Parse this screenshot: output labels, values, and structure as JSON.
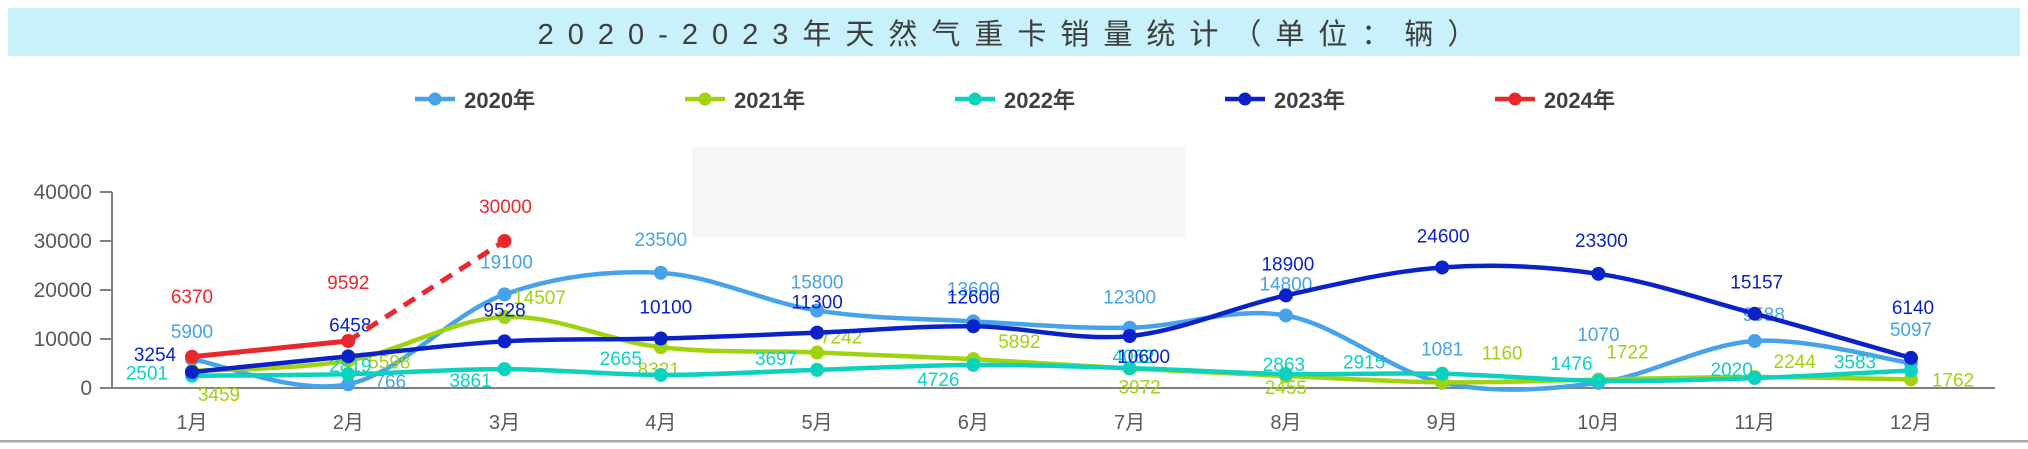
{
  "header": {
    "title": "2020-2023年天然气重卡销量统计（单位：辆）",
    "banner_color": "#C9F1FB"
  },
  "chart_data": {
    "type": "line",
    "title": "2020-2023年天然气重卡销量统计",
    "unit_label": "单位：辆",
    "line_style": "smooth",
    "grid": false,
    "legend_position": "top",
    "categories": [
      "1月",
      "2月",
      "3月",
      "4月",
      "5月",
      "6月",
      "7月",
      "8月",
      "9月",
      "10月",
      "11月",
      "12月"
    ],
    "y_axis": {
      "min": 0,
      "max": 40000,
      "tick_step": 10000,
      "tick_labels": [
        "0",
        "10000",
        "20000",
        "30000",
        "40000"
      ]
    },
    "axis_color": "#808080",
    "axis_text_color": "#595959",
    "series": [
      {
        "name": "2020年",
        "color": "#46A2E9",
        "values": [
          5900,
          766,
          19100,
          23500,
          15800,
          13600,
          12300,
          14800,
          1081,
          1070,
          9588,
          5097
        ]
      },
      {
        "name": "2021年",
        "color": "#9FD30E",
        "values": [
          3459,
          5598,
          14507,
          8321,
          7242,
          5892,
          3972,
          2455,
          1160,
          1722,
          2244,
          1762
        ]
      },
      {
        "name": "2022年",
        "color": "#0BD2BE",
        "values": [
          2501,
          2819,
          3861,
          2665,
          3697,
          4726,
          4062,
          2863,
          2915,
          1476,
          2020,
          3583
        ]
      },
      {
        "name": "2023年",
        "color": "#0A22C8",
        "values": [
          3254,
          6458,
          9528,
          10100,
          11300,
          12600,
          10600,
          18900,
          24600,
          23300,
          15157,
          6140
        ]
      },
      {
        "name": "2024年",
        "color": "#E9282C",
        "values": [
          6370,
          9592,
          30000
        ],
        "dashed_from_index": 1
      }
    ]
  }
}
